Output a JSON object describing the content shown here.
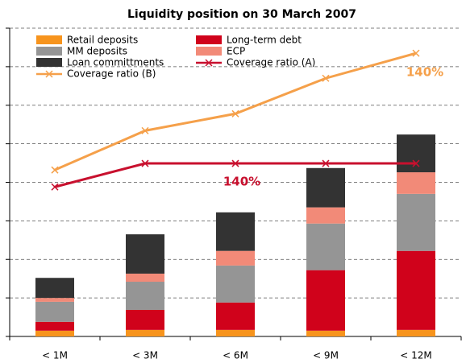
{
  "chart_data": {
    "type": "bar",
    "stacked": true,
    "title": "Liquidity position on 30 March 2007",
    "categories": [
      "< 1M",
      "< 3M",
      "< 6M",
      "< 9M",
      "< 12M"
    ],
    "series": [
      {
        "name": "Retail deposits",
        "color": "#f7941d",
        "values": [
          0.15,
          0.17,
          0.17,
          0.15,
          0.17
        ]
      },
      {
        "name": "Long-term debt",
        "color": "#d0021b",
        "values": [
          0.23,
          0.52,
          0.71,
          1.57,
          2.05
        ]
      },
      {
        "name": "MM deposits",
        "color": "#959595",
        "values": [
          0.52,
          0.73,
          0.96,
          1.21,
          1.48
        ]
      },
      {
        "name": "ECP",
        "color": "#f28a78",
        "values": [
          0.1,
          0.21,
          0.38,
          0.42,
          0.56
        ]
      },
      {
        "name": "Loan committments",
        "color": "#333333",
        "values": [
          0.52,
          1.02,
          1.0,
          1.02,
          0.98
        ]
      },
      {
        "name": "Coverage ratio (A)",
        "type": "line",
        "color": "#c8102e",
        "values": [
          3.88,
          4.49,
          4.49,
          4.49,
          4.49
        ]
      },
      {
        "name": "Coverage ratio (B)",
        "type": "line",
        "color": "#f5a04a",
        "values": [
          4.32,
          5.34,
          5.78,
          6.7,
          7.35
        ]
      }
    ],
    "annotations": [
      {
        "text": "140%",
        "color": "#c8102e"
      },
      {
        "text": "140%",
        "color": "#f5a04a"
      }
    ],
    "ylim": [
      0,
      8
    ],
    "yticks": [
      0,
      1,
      2,
      3,
      4,
      5,
      6,
      7,
      8
    ],
    "grid": true
  }
}
